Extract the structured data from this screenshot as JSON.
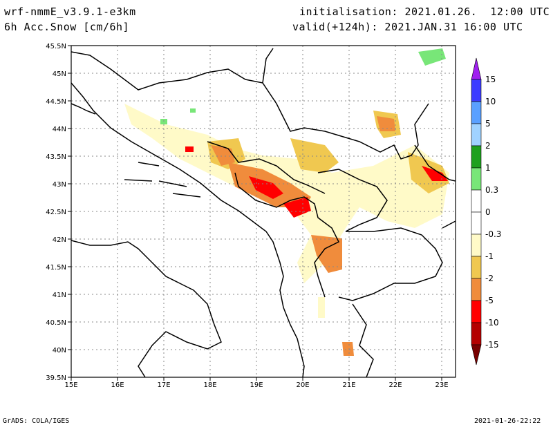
{
  "header": {
    "model": "wrf-nmmE_v3.9.1-e3km",
    "variable": "6h Acc.Snow [cm/6h]",
    "init": "initialisation: 2021.01.26.  12:00 UTC",
    "valid": "valid(+124h): 2021.JAN.31 16:00 UTC"
  },
  "footer": {
    "left": "GrADS: COLA/IGES",
    "right": "2021-01-26-22:22"
  },
  "map": {
    "lon_ticks": [
      "15E",
      "16E",
      "17E",
      "18E",
      "19E",
      "20E",
      "21E",
      "22E",
      "23E"
    ],
    "lat_ticks": [
      "39.5N",
      "40N",
      "40.5N",
      "41N",
      "41.5N",
      "42N",
      "42.5N",
      "43N",
      "43.5N",
      "44N",
      "44.5N",
      "45N",
      "45.5N"
    ]
  },
  "colorbar": {
    "labels": [
      "15",
      "10",
      "5",
      "2",
      "1",
      "0.3",
      "0",
      "-0.3",
      "-1",
      "-2",
      "-5",
      "-10",
      "-15"
    ],
    "colors": [
      "#a020f0",
      "#3c3cff",
      "#5aa0ff",
      "#a0d2ff",
      "#1ea01e",
      "#78e678",
      "#ffffff",
      "#fffac8",
      "#f0c850",
      "#f08c3c",
      "#ff0000",
      "#b40000",
      "#780000"
    ]
  }
}
